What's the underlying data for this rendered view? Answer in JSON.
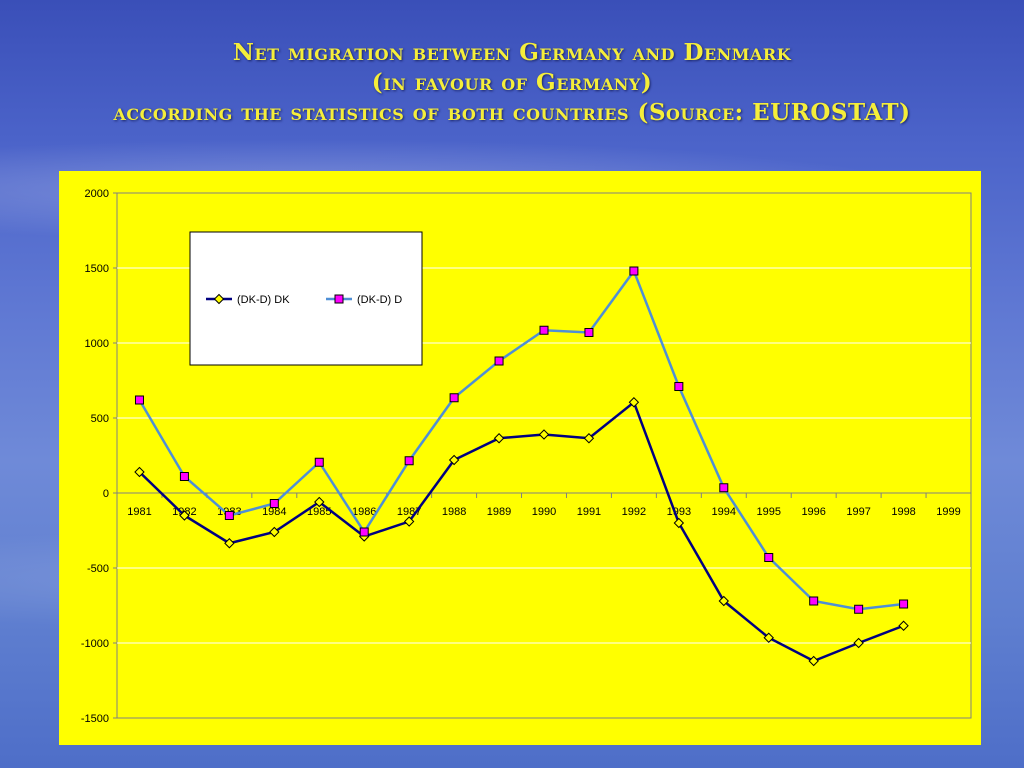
{
  "slide": {
    "title_line1": "Net migration between Germany and Denmark",
    "title_line2": "(in favour of Germany)",
    "title_line3": "according the statistics of both countries (Source: EUROSTAT)"
  },
  "colors": {
    "panel": "#ffff00",
    "series_dk": "#000080",
    "series_d": "#4f8fd6",
    "marker_d": "#ff00ff",
    "title": "#f5ee3a"
  },
  "chart_data": {
    "type": "line",
    "title": "",
    "xlabel": "",
    "ylabel": "",
    "ylim": [
      -1500,
      2000
    ],
    "yticks": [
      2000,
      1500,
      1000,
      500,
      0,
      -500,
      -1000,
      -1500
    ],
    "categories": [
      "1981",
      "1982",
      "1983",
      "1984",
      "1985",
      "1986",
      "1987",
      "1988",
      "1989",
      "1990",
      "1991",
      "1992",
      "1993",
      "1994",
      "1995",
      "1996",
      "1997",
      "1998",
      "1999"
    ],
    "grid": true,
    "legend_position": "top-left inside plot",
    "series": [
      {
        "name": "(DK-D) DK",
        "marker": "diamond",
        "values": [
          140,
          -150,
          -335,
          -260,
          -60,
          -290,
          -190,
          220,
          365,
          390,
          365,
          605,
          -200,
          -720,
          -965,
          -1120,
          -1000,
          -885,
          null
        ]
      },
      {
        "name": "(DK-D) D",
        "marker": "square",
        "values": [
          620,
          110,
          -150,
          -70,
          205,
          -260,
          215,
          635,
          880,
          1085,
          1070,
          1480,
          710,
          35,
          -430,
          -720,
          -775,
          -740,
          null
        ]
      }
    ]
  }
}
